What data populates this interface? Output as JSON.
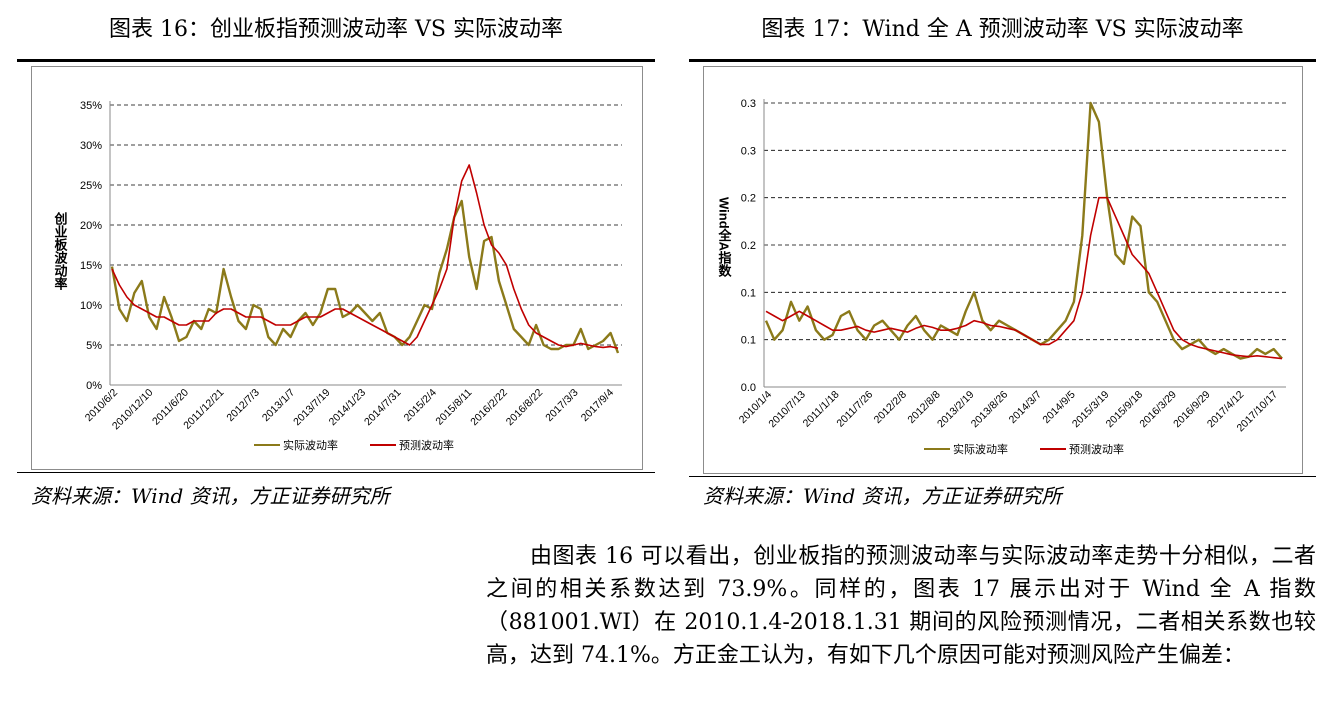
{
  "figure_left": {
    "title": "图表 16：创业板指预测波动率 VS 实际波动率",
    "source": "资料来源：Wind 资讯，方正证券研究所"
  },
  "figure_right": {
    "title": "图表 17：Wind 全 A 预测波动率 VS 实际波动率",
    "source": "资料来源：Wind 资讯，方正证券研究所"
  },
  "body_text": "由图表 16 可以看出，创业板指的预测波动率与实际波动率走势十分相似，二者之间的相关系数达到 73.9%。同样的，图表 17 展示出对于 Wind 全 A 指数（881001.WI）在 2010.1.4-2018.1.31 期间的风险预测情况，二者相关系数也较高，达到 74.1%。方正金工认为，有如下几个原因可能对预测风险产生偏差：",
  "chart_data": [
    {
      "type": "line",
      "ylabel": "创业板波动率",
      "ylim": [
        0,
        0.35
      ],
      "yticks": [
        "0%",
        "5%",
        "10%",
        "15%",
        "20%",
        "25%",
        "30%",
        "35%"
      ],
      "xticks": [
        "2010/6/2",
        "2010/12/10",
        "2011/6/20",
        "2011/12/21",
        "2012/7/3",
        "2013/1/7",
        "2013/7/19",
        "2014/1/23",
        "2014/7/31",
        "2015/2/4",
        "2015/8/11",
        "2016/2/22",
        "2016/8/22",
        "2017/3/3",
        "2017/9/4"
      ],
      "grid": true,
      "legend_position": "bottom",
      "colors": {
        "actual": "#8b7a1a",
        "forecast": "#c00000"
      },
      "series": [
        {
          "name": "实际波动率",
          "values": [
            0.148,
            0.095,
            0.08,
            0.115,
            0.13,
            0.085,
            0.07,
            0.11,
            0.085,
            0.055,
            0.06,
            0.08,
            0.07,
            0.095,
            0.09,
            0.145,
            0.11,
            0.08,
            0.07,
            0.1,
            0.095,
            0.06,
            0.05,
            0.07,
            0.06,
            0.08,
            0.09,
            0.075,
            0.09,
            0.12,
            0.12,
            0.085,
            0.09,
            0.1,
            0.09,
            0.08,
            0.09,
            0.065,
            0.06,
            0.05,
            0.06,
            0.08,
            0.1,
            0.095,
            0.14,
            0.17,
            0.21,
            0.23,
            0.16,
            0.12,
            0.18,
            0.185,
            0.13,
            0.1,
            0.07,
            0.06,
            0.05,
            0.075,
            0.05,
            0.045,
            0.045,
            0.05,
            0.05,
            0.07,
            0.045,
            0.05,
            0.055,
            0.065,
            0.04
          ]
        },
        {
          "name": "预测波动率",
          "values": [
            0.145,
            0.125,
            0.11,
            0.1,
            0.095,
            0.09,
            0.085,
            0.085,
            0.08,
            0.075,
            0.075,
            0.08,
            0.08,
            0.08,
            0.09,
            0.095,
            0.095,
            0.09,
            0.085,
            0.085,
            0.085,
            0.08,
            0.075,
            0.075,
            0.075,
            0.08,
            0.085,
            0.085,
            0.085,
            0.09,
            0.095,
            0.095,
            0.09,
            0.085,
            0.08,
            0.075,
            0.07,
            0.065,
            0.06,
            0.055,
            0.05,
            0.06,
            0.08,
            0.1,
            0.12,
            0.145,
            0.21,
            0.255,
            0.275,
            0.24,
            0.2,
            0.175,
            0.165,
            0.15,
            0.12,
            0.095,
            0.075,
            0.065,
            0.06,
            0.055,
            0.05,
            0.048,
            0.05,
            0.052,
            0.05,
            0.048,
            0.047,
            0.048,
            0.046
          ]
        }
      ]
    },
    {
      "type": "line",
      "ylabel": "Wind全A指数",
      "ylim": [
        0,
        0.3
      ],
      "yticks": [
        "0.0",
        "0.1",
        "0.1",
        "0.2",
        "0.2",
        "0.3",
        "0.3"
      ],
      "xticks": [
        "2010/1/4",
        "2010/7/13",
        "2011/1/18",
        "2011/7/26",
        "2012/2/8",
        "2012/8/8",
        "2013/2/19",
        "2013/8/26",
        "2014/3/7",
        "2014/9/5",
        "2015/3/19",
        "2015/9/18",
        "2016/3/29",
        "2016/9/29",
        "2017/4/12",
        "2017/10/17"
      ],
      "grid": true,
      "legend_position": "bottom",
      "colors": {
        "actual": "#8b7a1a",
        "forecast": "#c00000"
      },
      "series": [
        {
          "name": "实际波动率",
          "values": [
            0.07,
            0.05,
            0.06,
            0.09,
            0.07,
            0.085,
            0.06,
            0.05,
            0.055,
            0.075,
            0.08,
            0.06,
            0.05,
            0.065,
            0.07,
            0.06,
            0.05,
            0.065,
            0.075,
            0.06,
            0.05,
            0.065,
            0.06,
            0.055,
            0.08,
            0.1,
            0.07,
            0.06,
            0.07,
            0.065,
            0.06,
            0.055,
            0.05,
            0.045,
            0.05,
            0.06,
            0.07,
            0.09,
            0.16,
            0.3,
            0.28,
            0.2,
            0.14,
            0.13,
            0.18,
            0.17,
            0.1,
            0.09,
            0.07,
            0.05,
            0.04,
            0.045,
            0.05,
            0.04,
            0.035,
            0.04,
            0.035,
            0.03,
            0.032,
            0.04,
            0.035,
            0.04,
            0.03
          ]
        },
        {
          "name": "预测波动率",
          "values": [
            0.08,
            0.075,
            0.07,
            0.075,
            0.08,
            0.075,
            0.07,
            0.065,
            0.06,
            0.06,
            0.062,
            0.064,
            0.06,
            0.058,
            0.06,
            0.062,
            0.06,
            0.058,
            0.062,
            0.065,
            0.063,
            0.06,
            0.06,
            0.062,
            0.065,
            0.07,
            0.068,
            0.065,
            0.064,
            0.062,
            0.06,
            0.055,
            0.05,
            0.045,
            0.045,
            0.05,
            0.06,
            0.07,
            0.1,
            0.16,
            0.2,
            0.2,
            0.18,
            0.16,
            0.14,
            0.13,
            0.12,
            0.1,
            0.08,
            0.06,
            0.05,
            0.045,
            0.042,
            0.04,
            0.038,
            0.036,
            0.034,
            0.033,
            0.032,
            0.033,
            0.032,
            0.031,
            0.03
          ]
        }
      ]
    }
  ]
}
